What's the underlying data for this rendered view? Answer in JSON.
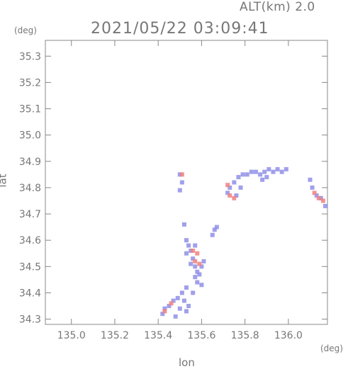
{
  "header": {
    "alt_label": "ALT(km) 2.0",
    "timestamp": "2021/05/22 03:09:41"
  },
  "chart_data": {
    "type": "scatter",
    "xlabel": "lon",
    "ylabel": "lat",
    "x_unit": "(deg)",
    "y_unit": "(deg)",
    "xlim": [
      134.88,
      136.18
    ],
    "ylim": [
      34.28,
      35.36
    ],
    "x_ticks": [
      {
        "value": 135.0,
        "label": "135.0"
      },
      {
        "value": 135.2,
        "label": "135.2"
      },
      {
        "value": 135.4,
        "label": "135.4"
      },
      {
        "value": 135.6,
        "label": "135.6"
      },
      {
        "value": 135.8,
        "label": "135.8"
      },
      {
        "value": 136.0,
        "label": "136.0"
      }
    ],
    "y_ticks": [
      {
        "value": 34.3,
        "label": "34.3"
      },
      {
        "value": 34.4,
        "label": "34.4"
      },
      {
        "value": 34.5,
        "label": "34.5"
      },
      {
        "value": 34.6,
        "label": "34.6"
      },
      {
        "value": 34.7,
        "label": "34.7"
      },
      {
        "value": 34.8,
        "label": "34.8"
      },
      {
        "value": 34.9,
        "label": "34.9"
      },
      {
        "value": 35.0,
        "label": "35.0"
      },
      {
        "value": 35.1,
        "label": "35.1"
      },
      {
        "value": 35.2,
        "label": "35.2"
      },
      {
        "value": 35.3,
        "label": "35.3"
      }
    ],
    "grid": false,
    "colors": {
      "low": "#8f8fe8",
      "high": "#f08080",
      "axis": "#888888"
    },
    "series": [
      {
        "color": "#8f8fe8",
        "points": [
          [
            135.5,
            34.85
          ],
          [
            135.51,
            34.82
          ],
          [
            135.5,
            34.79
          ],
          [
            135.72,
            34.78
          ],
          [
            135.73,
            34.8
          ],
          [
            135.75,
            34.82
          ],
          [
            135.77,
            34.84
          ],
          [
            135.79,
            34.85
          ],
          [
            135.81,
            34.85
          ],
          [
            135.83,
            34.86
          ],
          [
            135.85,
            34.86
          ],
          [
            135.87,
            34.85
          ],
          [
            135.89,
            34.86
          ],
          [
            135.91,
            34.87
          ],
          [
            135.93,
            34.86
          ],
          [
            135.95,
            34.87
          ],
          [
            135.97,
            34.86
          ],
          [
            135.99,
            34.87
          ],
          [
            135.88,
            34.83
          ],
          [
            135.9,
            34.84
          ],
          [
            135.76,
            34.77
          ],
          [
            135.78,
            34.8
          ],
          [
            136.11,
            34.8
          ],
          [
            136.13,
            34.77
          ],
          [
            136.15,
            34.76
          ],
          [
            136.17,
            34.73
          ],
          [
            136.1,
            34.83
          ],
          [
            135.66,
            34.64
          ],
          [
            135.67,
            34.65
          ],
          [
            135.65,
            34.62
          ],
          [
            135.52,
            34.66
          ],
          [
            135.53,
            34.6
          ],
          [
            135.54,
            34.58
          ],
          [
            135.53,
            34.55
          ],
          [
            135.55,
            34.56
          ],
          [
            135.56,
            34.53
          ],
          [
            135.57,
            34.5
          ],
          [
            135.58,
            34.48
          ],
          [
            135.57,
            34.46
          ],
          [
            135.58,
            34.44
          ],
          [
            135.59,
            34.47
          ],
          [
            135.6,
            34.5
          ],
          [
            135.61,
            34.52
          ],
          [
            135.57,
            34.58
          ],
          [
            135.55,
            34.51
          ],
          [
            135.53,
            34.42
          ],
          [
            135.51,
            34.4
          ],
          [
            135.49,
            34.38
          ],
          [
            135.47,
            34.37
          ],
          [
            135.45,
            34.35
          ],
          [
            135.43,
            34.34
          ],
          [
            135.42,
            34.32
          ],
          [
            135.53,
            34.33
          ],
          [
            135.54,
            34.35
          ],
          [
            135.52,
            34.37
          ],
          [
            135.5,
            34.34
          ],
          [
            135.48,
            34.31
          ],
          [
            135.56,
            34.4
          ],
          [
            135.6,
            34.43
          ]
        ]
      },
      {
        "color": "#f08080",
        "points": [
          [
            135.56,
            34.56
          ],
          [
            135.57,
            34.52
          ],
          [
            135.59,
            34.51
          ],
          [
            135.58,
            34.55
          ],
          [
            135.73,
            34.77
          ],
          [
            135.75,
            34.76
          ],
          [
            135.72,
            34.81
          ],
          [
            136.14,
            34.76
          ],
          [
            136.16,
            34.75
          ],
          [
            136.12,
            34.78
          ],
          [
            135.43,
            34.33
          ],
          [
            135.46,
            34.36
          ],
          [
            135.51,
            34.85
          ]
        ]
      }
    ]
  }
}
